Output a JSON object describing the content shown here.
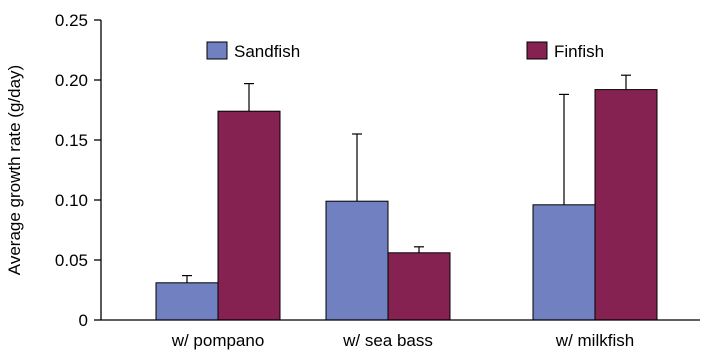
{
  "chart_data": {
    "type": "bar",
    "title": "",
    "xlabel": "",
    "ylabel": "Average growth rate (g/day)",
    "ylim": [
      0,
      0.25
    ],
    "yticks": [
      "0",
      "0.05",
      "0.10",
      "0.15",
      "0.20",
      "0.25"
    ],
    "ytick_values": [
      0,
      0.05,
      0.1,
      0.15,
      0.2,
      0.25
    ],
    "categories": [
      "w/ pompano",
      "w/ sea bass",
      "w/ milkfish"
    ],
    "series": [
      {
        "name": "Sandfish",
        "color": "#7080c0",
        "values": [
          0.031,
          0.099,
          0.096
        ],
        "errors": [
          0.006,
          0.056,
          0.092
        ]
      },
      {
        "name": "Finfish",
        "color": "#862252",
        "values": [
          0.174,
          0.056,
          0.192
        ],
        "errors": [
          0.023,
          0.005,
          0.012
        ]
      }
    ],
    "legend_position": "top",
    "grid": false,
    "error_bars": "upper"
  }
}
